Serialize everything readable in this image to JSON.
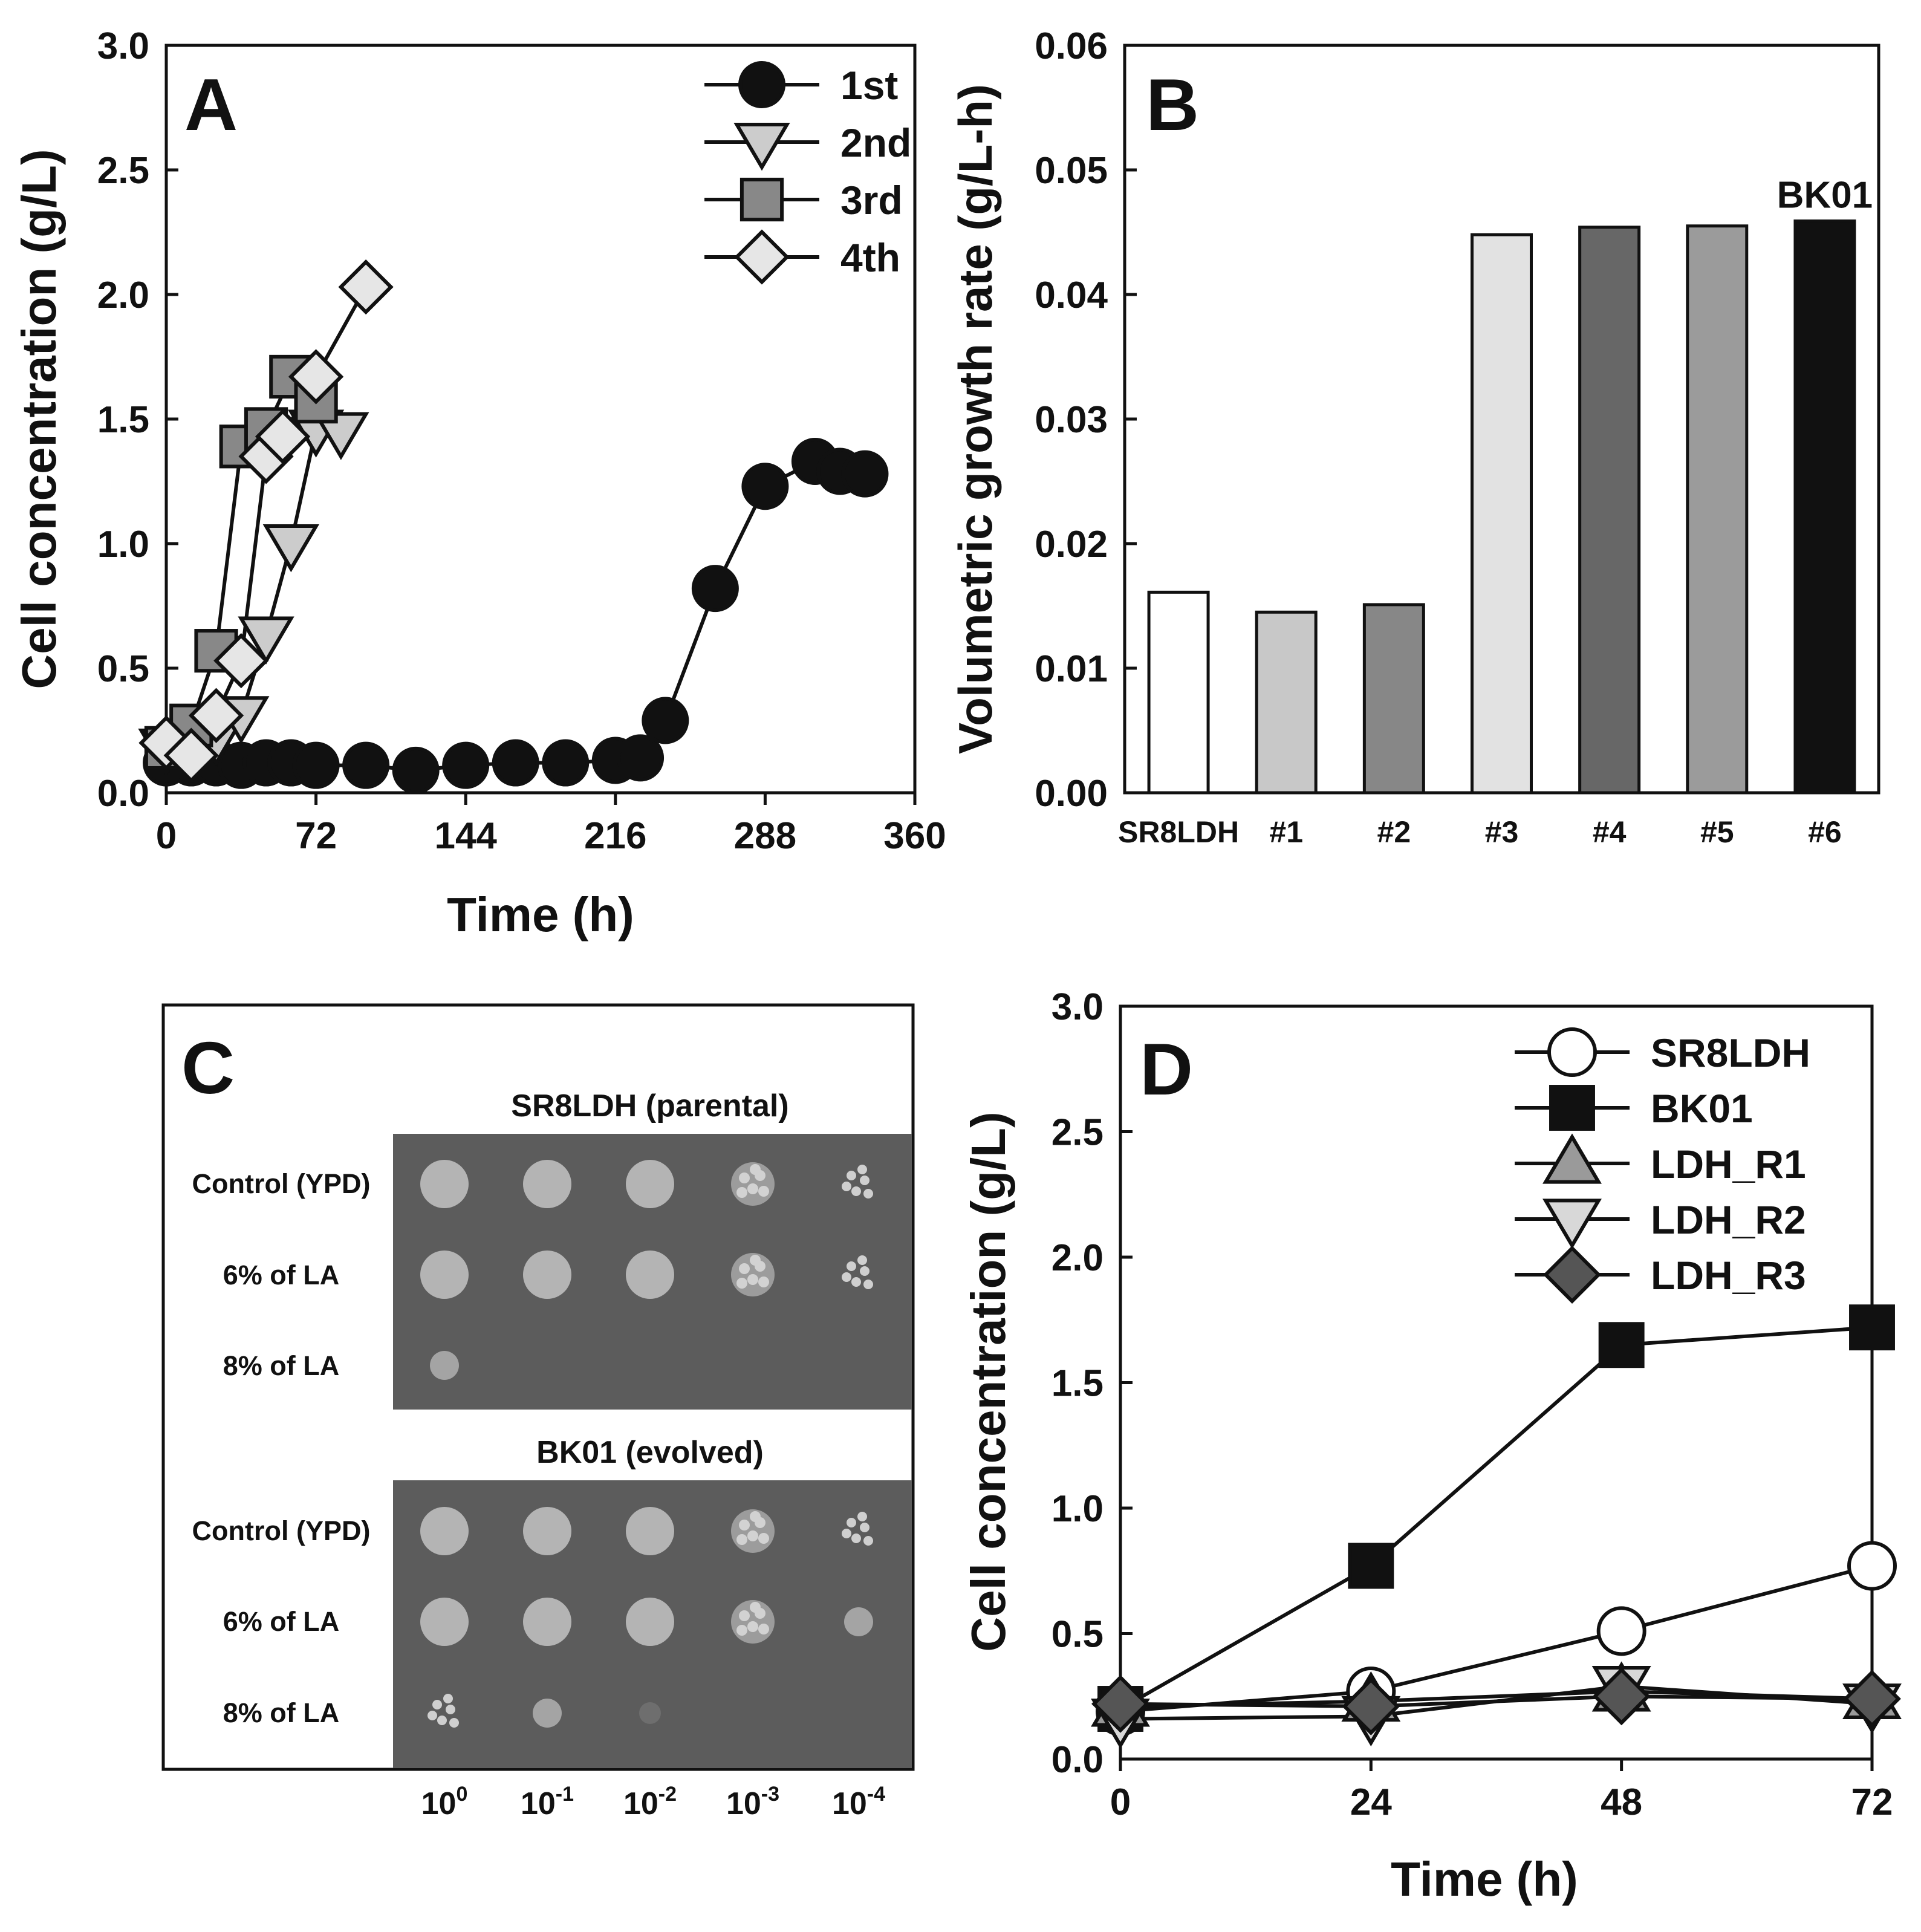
{
  "chart_data": [
    {
      "panel": "A",
      "type": "line",
      "xlabel": "Time (h)",
      "ylabel": "Cell concentration (g/L)",
      "xlim": [
        0,
        360
      ],
      "ylim": [
        0,
        3.0
      ],
      "xticks": [
        0,
        72,
        144,
        216,
        288,
        360
      ],
      "yticks": [
        0.0,
        0.5,
        1.0,
        1.5,
        2.0,
        2.5,
        3.0
      ],
      "xtick_labels": [
        "0",
        "72",
        "144",
        "216",
        "288",
        "360"
      ],
      "ytick_labels": [
        "0.0",
        "0.5",
        "1.0",
        "1.5",
        "2.0",
        "2.5",
        "3.0"
      ],
      "legend_position": "top-right",
      "series": [
        {
          "name": "1st",
          "marker": "circle",
          "color": "#111111",
          "x": [
            0,
            12,
            24,
            36,
            48,
            60,
            72,
            96,
            120,
            144,
            168,
            192,
            216,
            228,
            240,
            264,
            288,
            312,
            324,
            336
          ],
          "y": [
            0.12,
            0.12,
            0.12,
            0.11,
            0.12,
            0.12,
            0.11,
            0.11,
            0.09,
            0.11,
            0.12,
            0.12,
            0.13,
            0.14,
            0.29,
            0.82,
            1.23,
            1.33,
            1.29,
            1.28
          ]
        },
        {
          "name": "2nd",
          "marker": "triangle-down",
          "color": "#cccccc",
          "x": [
            0,
            12,
            24,
            36,
            48,
            60,
            72,
            84
          ],
          "y": [
            0.18,
            0.18,
            0.22,
            0.31,
            0.63,
            1.0,
            1.46,
            1.45
          ]
        },
        {
          "name": "3rd",
          "marker": "square",
          "color": "#888888",
          "x": [
            0,
            12,
            24,
            36,
            48,
            60,
            72
          ],
          "y": [
            0.18,
            0.27,
            0.57,
            1.39,
            1.46,
            1.67,
            1.57
          ]
        },
        {
          "name": "4th",
          "marker": "diamond",
          "color": "#e6e6e6",
          "x": [
            0,
            12,
            24,
            36,
            48,
            56,
            72,
            96
          ],
          "y": [
            0.2,
            0.15,
            0.31,
            0.53,
            1.35,
            1.43,
            1.67,
            2.03
          ]
        }
      ]
    },
    {
      "panel": "B",
      "type": "bar",
      "ylabel": "Volumetric growth rate (g/L-h)",
      "ylim": [
        0,
        0.06
      ],
      "yticks": [
        0.0,
        0.01,
        0.02,
        0.03,
        0.04,
        0.05,
        0.06
      ],
      "ytick_labels": [
        "0.00",
        "0.01",
        "0.02",
        "0.03",
        "0.04",
        "0.05",
        "0.06"
      ],
      "categories": [
        "SR8LDH",
        "#1",
        "#2",
        "#3",
        "#4",
        "#5",
        "#6"
      ],
      "values": [
        0.0161,
        0.0145,
        0.0151,
        0.0448,
        0.0454,
        0.0455,
        0.0459
      ],
      "colors": [
        "#ffffff",
        "#c8c8c8",
        "#878787",
        "#e2e2e2",
        "#676767",
        "#9b9b9b",
        "#111111"
      ],
      "annotation": {
        "text": "BK01",
        "category": "#6"
      }
    },
    {
      "panel": "D",
      "type": "line",
      "xlabel": "Time (h)",
      "ylabel": "Cell concentration (g/L)",
      "xlim": [
        0,
        72
      ],
      "ylim": [
        0,
        3.0
      ],
      "xticks": [
        0,
        24,
        48,
        72
      ],
      "yticks": [
        0.0,
        0.5,
        1.0,
        1.5,
        2.0,
        2.5,
        3.0
      ],
      "xtick_labels": [
        "0",
        "24",
        "48",
        "72"
      ],
      "ytick_labels": [
        "0.0",
        "0.5",
        "1.0",
        "1.5",
        "2.0",
        "2.5",
        "3.0"
      ],
      "legend_position": "top-right",
      "series": [
        {
          "name": "SR8LDH",
          "marker": "circle",
          "color": "#ffffff",
          "x": [
            0,
            24,
            48,
            72
          ],
          "y": [
            0.19,
            0.27,
            0.51,
            0.77
          ]
        },
        {
          "name": "BK01",
          "marker": "square",
          "color": "#111111",
          "x": [
            0,
            24,
            48,
            72
          ],
          "y": [
            0.2,
            0.77,
            1.65,
            1.72
          ]
        },
        {
          "name": "LDH_R1",
          "marker": "triangle-up",
          "color": "#9a9a9a",
          "x": [
            0,
            24,
            48,
            72
          ],
          "y": [
            0.21,
            0.23,
            0.27,
            0.24
          ]
        },
        {
          "name": "LDH_R2",
          "marker": "triangle-down",
          "color": "#d8d8d8",
          "x": [
            0,
            24,
            48,
            72
          ],
          "y": [
            0.16,
            0.17,
            0.29,
            0.22
          ]
        },
        {
          "name": "LDH_R3",
          "marker": "diamond",
          "color": "#555555",
          "x": [
            0,
            24,
            48,
            72
          ],
          "y": [
            0.22,
            0.21,
            0.25,
            0.24
          ]
        }
      ]
    }
  ],
  "panels": {
    "a": {
      "letter": "A"
    },
    "b": {
      "letter": "B"
    },
    "c": {
      "letter": "C",
      "plate_colors": {
        "background": "#5c5c5c",
        "colony": "#b4b4b4"
      },
      "top_title": "SR8LDH (parental)",
      "bottom_title": "BK01 (evolved)",
      "row_labels": [
        "Control (YPD)",
        "6% of LA",
        "8% of LA"
      ],
      "dilutions": [
        {
          "base": "10",
          "exp": "0"
        },
        {
          "base": "10",
          "exp": "-1"
        },
        {
          "base": "10",
          "exp": "-2"
        },
        {
          "base": "10",
          "exp": "-3"
        },
        {
          "base": "10",
          "exp": "-4"
        }
      ],
      "growth_levels": {
        "top": [
          [
            1,
            1,
            1,
            0.8,
            0.5
          ],
          [
            1,
            1,
            1,
            0.8,
            0.5
          ],
          [
            0.4,
            0,
            0,
            0,
            0
          ]
        ],
        "bottom": [
          [
            1,
            1,
            1,
            0.8,
            0.5
          ],
          [
            1,
            1,
            1,
            0.8,
            0.3
          ],
          [
            0.6,
            0.4,
            0.15,
            0,
            0
          ]
        ]
      }
    },
    "d": {
      "letter": "D"
    }
  }
}
